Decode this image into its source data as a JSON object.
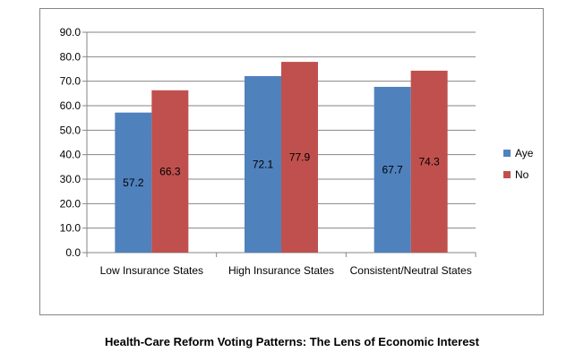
{
  "caption": "Health-Care Reform Voting Patterns: The Lens of Economic Interest",
  "chart_data": {
    "type": "bar",
    "categories": [
      "Low Insurance States",
      "High Insurance States",
      "Consistent/Neutral States"
    ],
    "series": [
      {
        "name": "Aye",
        "values": [
          57.2,
          72.1,
          67.7
        ],
        "color": "#4f81bd"
      },
      {
        "name": "No",
        "values": [
          66.3,
          77.9,
          74.3
        ],
        "color": "#c0504d"
      }
    ],
    "ylim": [
      0,
      90
    ],
    "yticks": [
      "0.0",
      "10.0",
      "20.0",
      "30.0",
      "40.0",
      "50.0",
      "60.0",
      "70.0",
      "80.0",
      "90.0"
    ],
    "grid": true,
    "gridlines_color": "#868686",
    "legend_position": "right",
    "data_labels": true
  }
}
